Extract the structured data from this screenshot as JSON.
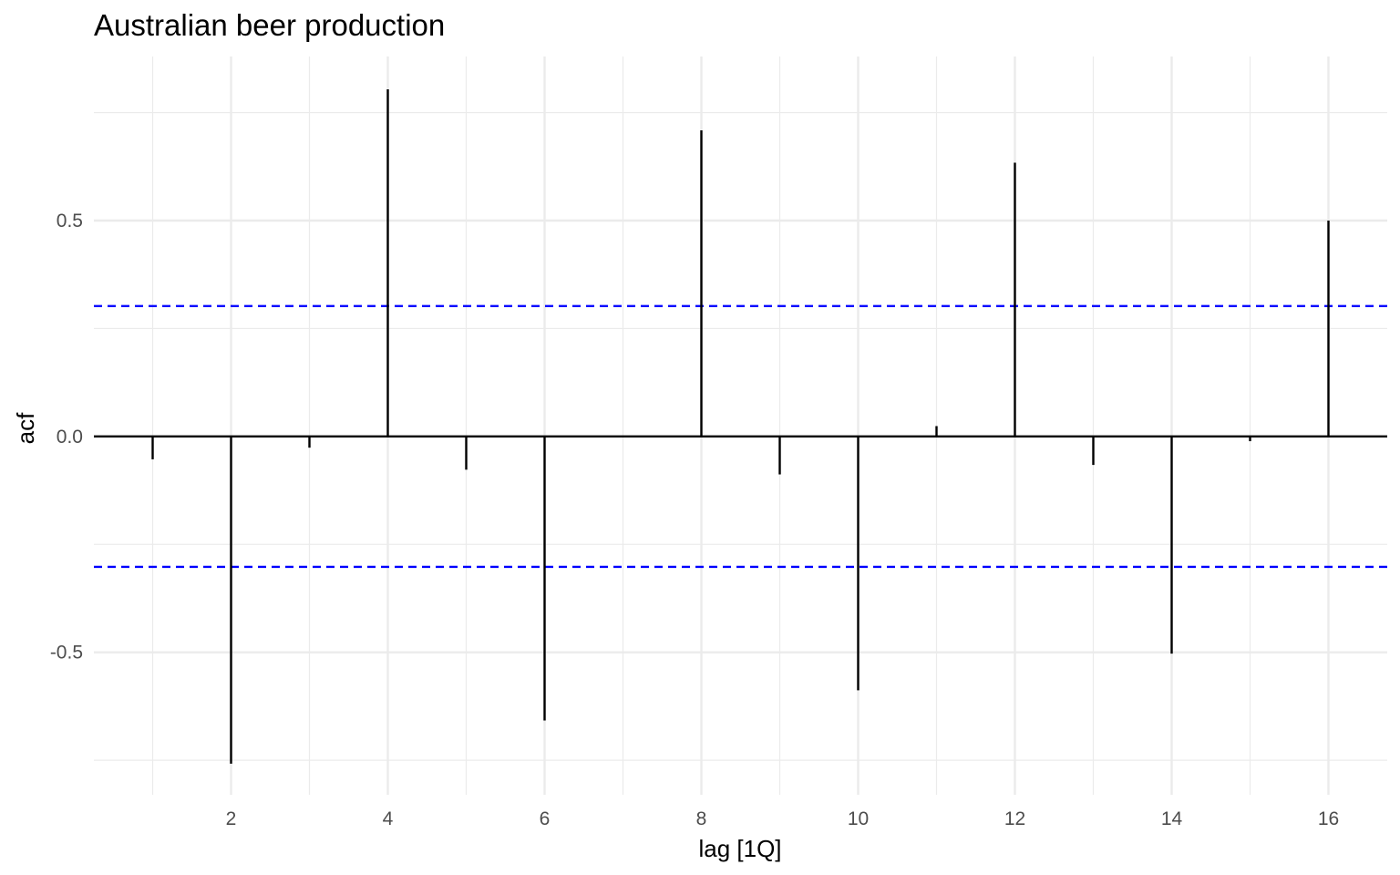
{
  "chart_data": {
    "type": "bar",
    "title": "Australian beer production",
    "xlabel": "lag [1Q]",
    "ylabel": "acf",
    "lags": [
      1,
      2,
      3,
      4,
      5,
      6,
      7,
      8,
      9,
      10,
      11,
      12,
      13,
      14,
      15,
      16
    ],
    "acf": [
      -0.053,
      -0.758,
      -0.026,
      0.804,
      -0.077,
      -0.658,
      0.001,
      0.709,
      -0.088,
      -0.588,
      0.024,
      0.634,
      -0.066,
      -0.503,
      -0.011,
      0.5
    ],
    "confidence_bounds": [
      -0.302,
      0.302
    ],
    "confidence_color": "#0000ff",
    "xlim": [
      0.25,
      16.75
    ],
    "ylim": [
      -0.83,
      0.88
    ],
    "x_ticks": [
      2,
      4,
      6,
      8,
      10,
      12,
      14,
      16
    ],
    "x_tick_labels": [
      "2",
      "4",
      "6",
      "8",
      "10",
      "12",
      "14",
      "16"
    ],
    "y_ticks": [
      -0.5,
      0.0,
      0.5
    ],
    "y_tick_labels": [
      "-0.5",
      "0.0",
      "0.5"
    ],
    "grid": true,
    "legend": "none"
  }
}
